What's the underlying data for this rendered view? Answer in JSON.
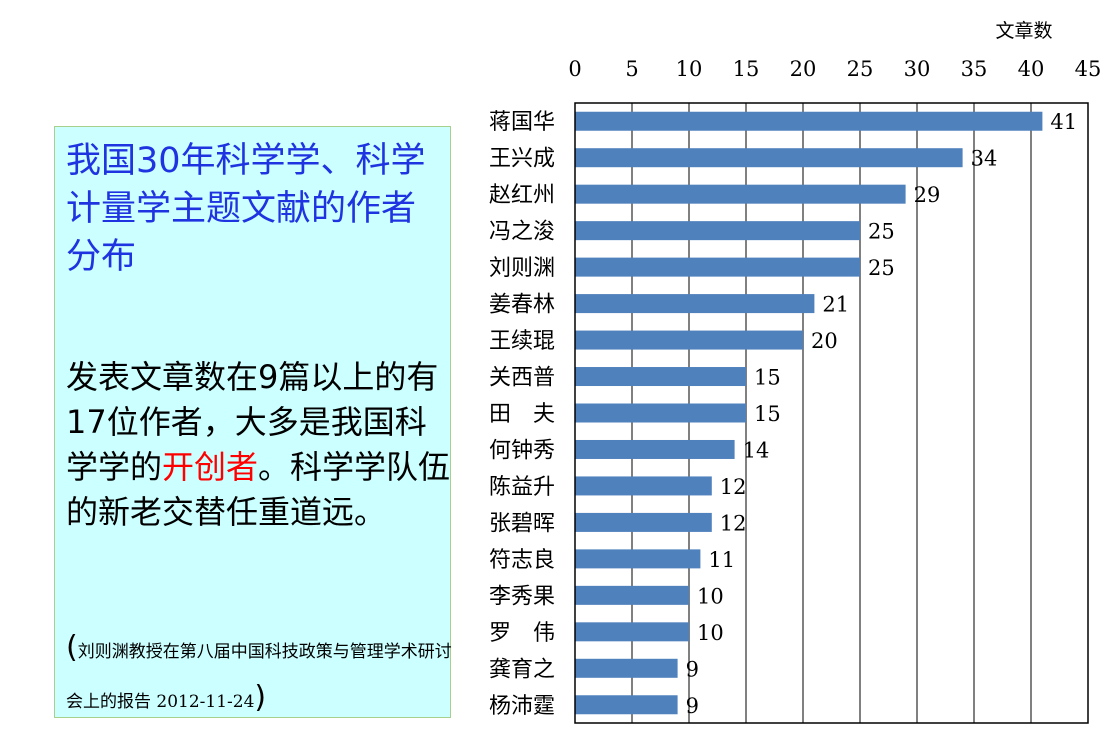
{
  "left_panel": {
    "title": "我国30年科学学、科学计量学主题文献的作者分布",
    "body_before": "发表文章数在9篇以上的有17位作者，大多是我国科学学的",
    "body_highlight": "开创者",
    "body_after": "。科学学队伍的新老交替任重道远。",
    "citation_open": "(",
    "citation": "刘则渊教授在第八届中国科技政策与管理学术研讨会上的报告 2012-11-24",
    "citation_close": ")",
    "colors": {
      "title": "#1f33e0",
      "highlight": "#ff0000",
      "background": "#ccffff"
    }
  },
  "chart_data": {
    "type": "bar",
    "orientation": "horizontal",
    "xlabel": "文章数",
    "xlim": [
      0,
      45
    ],
    "xticks": [
      "0",
      "5",
      "10",
      "15",
      "20",
      "25",
      "30",
      "35",
      "40",
      "45"
    ],
    "x_axis_position": "top",
    "grid": true,
    "categories": [
      "蒋国华",
      "王兴成",
      "赵红州",
      "冯之浚",
      "刘则渊",
      "姜春林",
      "王续琨",
      "关西普",
      "田　夫",
      "何钟秀",
      "陈益升",
      "张碧晖",
      "符志良",
      "李秀果",
      "罗　伟",
      "龚育之",
      "杨沛霆"
    ],
    "values": [
      41,
      34,
      29,
      25,
      25,
      21,
      20,
      15,
      15,
      14,
      12,
      12,
      11,
      10,
      10,
      9,
      9
    ],
    "value_labels": [
      "41",
      "34",
      "29",
      "25",
      "25",
      "21",
      "20",
      "15",
      "15",
      "14",
      "12",
      "12",
      "11",
      "10",
      "10",
      "9",
      "9"
    ],
    "bar_color": "#4f81bd"
  }
}
